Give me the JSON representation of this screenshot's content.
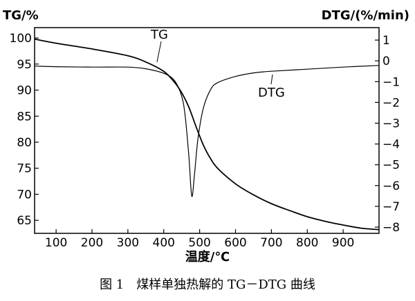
{
  "chart_data": {
    "type": "line",
    "caption": "图 1　煤样单独热解的 TG－DTG 曲线",
    "xlabel": "温度/℃",
    "ylabel_left": "TG/%",
    "ylabel_right": "DTG/(%/min)",
    "xlim": [
      40,
      1000
    ],
    "ylim_left": [
      62.5,
      102
    ],
    "ylim_right": [
      -8.3,
      1.6
    ],
    "x_ticks": [
      100,
      200,
      300,
      400,
      500,
      600,
      700,
      800,
      900
    ],
    "y_left_ticks": [
      100,
      95,
      90,
      85,
      80,
      75,
      70,
      65
    ],
    "y_right_ticks": [
      1,
      0,
      -1,
      -2,
      -3,
      -4,
      -5,
      -6,
      -7,
      -8
    ],
    "grid": false,
    "legend": "none",
    "series": [
      {
        "name": "TG",
        "axis": "left",
        "color": "#000000",
        "x": [
          40,
          100,
          200,
          300,
          350,
          400,
          430,
          450,
          470,
          490,
          510,
          530,
          550,
          600,
          650,
          700,
          750,
          800,
          850,
          900,
          950,
          1000
        ],
        "values": [
          99.8,
          99.0,
          97.9,
          96.6,
          95.4,
          93.6,
          91.5,
          89.5,
          86.7,
          83.0,
          79.5,
          76.9,
          75.0,
          72.0,
          69.9,
          68.2,
          66.9,
          65.7,
          64.8,
          64.1,
          63.5,
          63.2
        ]
      },
      {
        "name": "DTG",
        "axis": "right",
        "color": "#000000",
        "x": [
          40,
          100,
          200,
          300,
          350,
          400,
          430,
          450,
          460,
          470,
          478,
          485,
          495,
          510,
          530,
          550,
          600,
          650,
          700,
          800,
          900,
          1000
        ],
        "values": [
          -0.25,
          -0.28,
          -0.3,
          -0.3,
          -0.38,
          -0.6,
          -0.95,
          -1.7,
          -2.7,
          -4.6,
          -6.5,
          -5.6,
          -3.8,
          -2.3,
          -1.4,
          -1.05,
          -0.75,
          -0.58,
          -0.5,
          -0.4,
          -0.3,
          -0.22
        ]
      }
    ],
    "annotations": [
      {
        "text": "TG",
        "series": "TG"
      },
      {
        "text": "DTG",
        "series": "DTG"
      }
    ]
  }
}
